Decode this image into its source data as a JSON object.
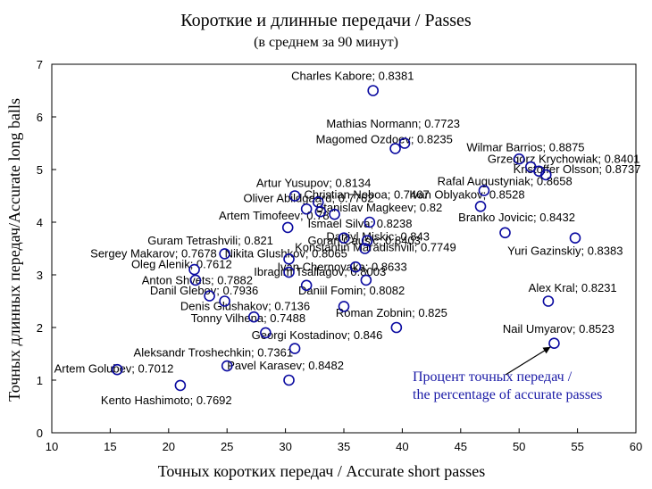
{
  "chart_data": {
    "type": "scatter",
    "title": "Короткие и длинные передачи / Passes",
    "subtitle": "(в среднем за 90 минут)",
    "xlabel": "Точных коротких передач / Accurate short passes",
    "ylabel": "Точных длинных передач/Accurate long balls",
    "xlim": [
      10,
      60
    ],
    "ylim": [
      0,
      7
    ],
    "xticks": [
      "10",
      "15",
      "20",
      "25",
      "30",
      "35",
      "40",
      "45",
      "50",
      "55",
      "60"
    ],
    "yticks": [
      "0",
      "1",
      "2",
      "3",
      "4",
      "5",
      "6",
      "7"
    ],
    "grid": false,
    "marker_color": "#0a0aa0",
    "annotation": {
      "lines": [
        "Процент точных передач /",
        "the percentage of accurate passes"
      ],
      "color": "#1a1aa6"
    },
    "points": [
      {
        "label": "Charles Kabore; 0.8381",
        "x": 37.5,
        "y": 6.5
      },
      {
        "label": "Mathias Normann; 0.7723",
        "x": 40.2,
        "y": 5.5
      },
      {
        "label": "Magomed Ozdoev; 0.8235",
        "x": 39.4,
        "y": 5.4
      },
      {
        "label": "Wilmar Barrios; 0.8875",
        "x": 50.0,
        "y": 5.2
      },
      {
        "label": "Grzegorz Krychowiak; 0.8401",
        "x": 51.0,
        "y": 5.05
      },
      {
        "label": "Kristoffer Olsson; 0.8737",
        "x": 51.7,
        "y": 4.97
      },
      {
        "label": "Rafal Augustyniak; 0.8658",
        "x": 52.3,
        "y": 4.9
      },
      {
        "label": "Artur Yusupov; 0.8134",
        "x": 30.8,
        "y": 4.5
      },
      {
        "label": "Christian Noboa; 0.7467",
        "x": 32.8,
        "y": 4.38
      },
      {
        "label": "Ivan Oblyakov; 0.8528",
        "x": 47.0,
        "y": 4.6
      },
      {
        "label": "Oliver Abildgaard; 0.7762",
        "x": 31.8,
        "y": 4.25
      },
      {
        "label": "Stanislav Magkeev; 0.82",
        "x": 34.2,
        "y": 4.15
      },
      {
        "label": "Artem Timofeev; 0.78",
        "x": 33.0,
        "y": 4.2
      },
      {
        "label": "Ismael Silva; 0.8238",
        "x": 37.2,
        "y": 4.0
      },
      {
        "label": "Daniyl Miskic; 0.843",
        "x": 30.2,
        "y": 3.9
      },
      {
        "label": "Branko Jovicic; 0.8432",
        "x": 46.7,
        "y": 4.3
      },
      {
        "label": "Guram Tetrashvili; 0.821",
        "x": 35.0,
        "y": 3.7
      },
      {
        "label": "Goran Causic; 0.8403",
        "x": 37.0,
        "y": 3.65
      },
      {
        "label": "Yuri Gazinskiy; 0.8383",
        "x": 54.8,
        "y": 3.7
      },
      {
        "label": "Konstantin Maradishvili; 0.7749",
        "x": 36.8,
        "y": 3.5
      },
      {
        "label": "Sergey Makarov; 0.7678",
        "x": 24.8,
        "y": 3.4
      },
      {
        "label": "Nikita Glushkov; 0.8065",
        "x": 30.3,
        "y": 3.3
      },
      {
        "label": "Branko Jovicic; 0.8432",
        "x": 48.8,
        "y": 3.8
      },
      {
        "label": "Oleg Alenik; 0.7612",
        "x": 22.2,
        "y": 3.1
      },
      {
        "label": "Ivan Chernovaka; 0.8633",
        "x": 36.0,
        "y": 3.15
      },
      {
        "label": "Ibragim Tsallagov; 0.8003",
        "x": 30.3,
        "y": 3.05
      },
      {
        "label": "Anton Shvets; 0.7882",
        "x": 22.3,
        "y": 2.9
      },
      {
        "label": "Ibragim Tsallagov; 0.8003",
        "x": 36.9,
        "y": 2.9
      },
      {
        "label": "Danil Glebov; 0.7936",
        "x": 23.5,
        "y": 2.6
      },
      {
        "label": "Daniil Fomin; 0.8082",
        "x": 31.8,
        "y": 2.8
      },
      {
        "label": "Alex Kral; 0.8231",
        "x": 52.5,
        "y": 2.5
      },
      {
        "label": "Denis Glushakov; 0.7136",
        "x": 24.8,
        "y": 2.5
      },
      {
        "label": "Roman Zobnin; 0.825",
        "x": 35.0,
        "y": 2.4
      },
      {
        "label": "Tonny Vilhena; 0.7488",
        "x": 27.3,
        "y": 2.2
      },
      {
        "label": "Georgi Kostadinov; 0.846",
        "x": 39.5,
        "y": 2.0
      },
      {
        "label": "Nail Umyarov; 0.8523",
        "x": 53.0,
        "y": 1.7
      },
      {
        "label": "Aleksandr Troshechkin; 0.7361",
        "x": 28.3,
        "y": 1.9
      },
      {
        "label": "Pavel Karasev; 0.8482",
        "x": 30.8,
        "y": 1.6
      },
      {
        "label": "Artem Golubev; 0.7012",
        "x": 15.6,
        "y": 1.2
      },
      {
        "label": "Kento Hashimoto; 0.7692",
        "x": 25.0,
        "y": 1.27
      },
      {
        "label": "Kento Hashimoto; 0.7692",
        "x": 30.3,
        "y": 1.0
      },
      {
        "label": "Kento Hashimoto; 0.7692",
        "x": 21.0,
        "y": 0.9
      }
    ],
    "labels": [
      {
        "text": "Charles Kabore; 0.8381",
        "x": 30.5,
        "y": 6.7
      },
      {
        "text": "Mathias Normann; 0.7723",
        "x": 33.5,
        "y": 5.8
      },
      {
        "text": "Magomed Ozdoev; 0.8235",
        "x": 32.6,
        "y": 5.5
      },
      {
        "text": "Wilmar Barrios; 0.8875",
        "x": 45.5,
        "y": 5.35
      },
      {
        "text": "Grzegorz Krychowiak; 0.8401",
        "x": 47.3,
        "y": 5.13
      },
      {
        "text": "Kristoffer Olsson; 0.8737",
        "x": 49.5,
        "y": 4.93
      },
      {
        "text": "Rafal Augustyniak; 0.8658",
        "x": 43.0,
        "y": 4.7
      },
      {
        "text": "Artur Yusupov; 0.8134",
        "x": 27.5,
        "y": 4.67
      },
      {
        "text": "Christian Noboa; 0.7467",
        "x": 31.6,
        "y": 4.45
      },
      {
        "text": "Ivan Oblyakov; 0.8528",
        "x": 40.6,
        "y": 4.45
      },
      {
        "text": "Oliver Abildgaard; 0.7762",
        "x": 26.4,
        "y": 4.38
      },
      {
        "text": "Stanislav Magkeev; 0.82",
        "x": 32.6,
        "y": 4.2
      },
      {
        "text": "Artem Timofeev; 0.78",
        "x": 24.3,
        "y": 4.05
      },
      {
        "text": "Branko Jovicic; 0.8432",
        "x": 44.8,
        "y": 4.02
      },
      {
        "text": "Ismael Silva; 0.8238",
        "x": 31.9,
        "y": 3.9
      },
      {
        "text": "Daniyl Miskic; 0.843",
        "x": 33.5,
        "y": 3.65
      },
      {
        "text": "Guram Tetrashvili; 0.821",
        "x": 18.2,
        "y": 3.58
      },
      {
        "text": "Goran Causic; 0.8403",
        "x": 31.9,
        "y": 3.58
      },
      {
        "text": "Yuri Gazinskiy; 0.8383",
        "x": 49.0,
        "y": 3.38
      },
      {
        "text": "Konstantin Maradishvili; 0.7749",
        "x": 30.8,
        "y": 3.45
      },
      {
        "text": "Sergey Makarov; 0.7678",
        "x": 13.3,
        "y": 3.33
      },
      {
        "text": "Nikita Glushkov; 0.8065",
        "x": 24.8,
        "y": 3.33
      },
      {
        "text": "Oleg Alenik; 0.7612",
        "x": 16.8,
        "y": 3.13
      },
      {
        "text": "Ivan Chernovaka; 0.8633",
        "x": 29.3,
        "y": 3.08
      },
      {
        "text": "Ibragim Tsallagov; 0.8003",
        "x": 27.3,
        "y": 2.98
      },
      {
        "text": "Anton Shvets; 0.7882",
        "x": 17.7,
        "y": 2.82
      },
      {
        "text": "Danil Glebov; 0.7936",
        "x": 18.4,
        "y": 2.63
      },
      {
        "text": "Daniil Fomin; 0.8082",
        "x": 31.1,
        "y": 2.63
      },
      {
        "text": "Alex Kral; 0.8231",
        "x": 50.8,
        "y": 2.68
      },
      {
        "text": "Denis Glushakov; 0.7136",
        "x": 21.0,
        "y": 2.33
      },
      {
        "text": "Roman Zobnin; 0.825",
        "x": 34.3,
        "y": 2.2
      },
      {
        "text": "Tonny Vilhena; 0.7488",
        "x": 21.9,
        "y": 2.1
      },
      {
        "text": "Nail Umyarov; 0.8523",
        "x": 48.6,
        "y": 1.9
      },
      {
        "text": "Georgi Kostadinov; 0.846",
        "x": 27.1,
        "y": 1.78
      },
      {
        "text": "Aleksandr Troshechkin; 0.7361",
        "x": 17.0,
        "y": 1.45
      },
      {
        "text": "Pavel Karasev; 0.8482",
        "x": 25.0,
        "y": 1.2
      },
      {
        "text": "Artem Golubev; 0.7012",
        "x": 10.2,
        "y": 1.14
      },
      {
        "text": "Kento Hashimoto; 0.7692",
        "x": 14.2,
        "y": 0.54
      }
    ]
  }
}
